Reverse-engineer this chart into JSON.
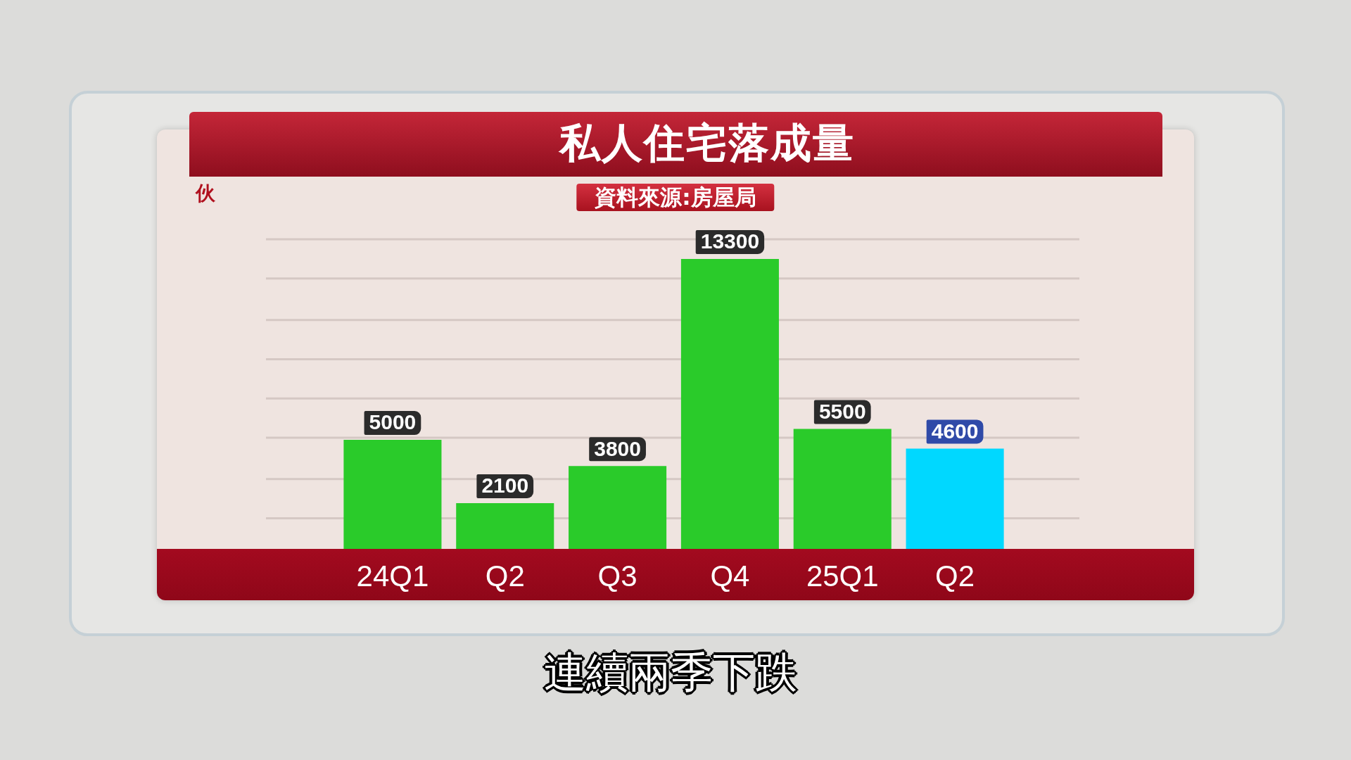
{
  "chart_data": {
    "type": "bar",
    "title": "私人住宅落成量",
    "ylabel": "伙",
    "annotations": [
      "資料來源:房屋局",
      "連續兩季下跌"
    ],
    "categories": [
      "24Q1",
      "Q2",
      "Q3",
      "Q4",
      "25Q1",
      "Q2"
    ],
    "values": [
      5000,
      2100,
      3800,
      13300,
      5500,
      4600
    ],
    "colors": [
      "#2acb2a",
      "#2acb2a",
      "#2acb2a",
      "#2acb2a",
      "#2acb2a",
      "#00d8ff"
    ],
    "ylim": [
      0,
      14200
    ],
    "yticks": [
      {
        "value": 1400,
        "label": null
      },
      {
        "value": 3200,
        "label": null
      },
      {
        "value": 5100,
        "label": null
      },
      {
        "value": 6900,
        "label": null
      },
      {
        "value": 8700,
        "label": null
      },
      {
        "value": 10500,
        "label": null
      },
      {
        "value": 12400,
        "label": null
      },
      {
        "value": 14200,
        "label": null
      }
    ],
    "grid": "y",
    "tick_labels": "x",
    "data_labels": true
  }
}
